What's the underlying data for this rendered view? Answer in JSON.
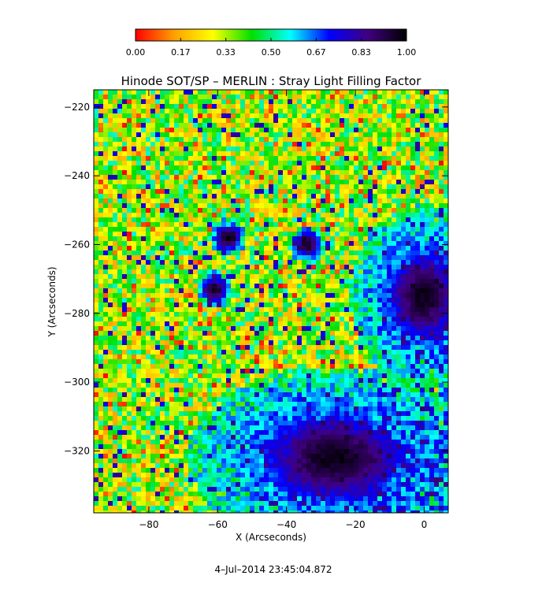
{
  "chart_data": {
    "type": "heatmap",
    "title": "Hinode SOT/SP – MERLIN : Stray Light Filling Factor",
    "xlabel": "X (Arcseconds)",
    "ylabel": "Y (Arcseconds)",
    "xlim": [
      -96,
      7
    ],
    "ylim": [
      -338,
      -215
    ],
    "x_ticks": [
      -80,
      -60,
      -40,
      -20,
      0
    ],
    "y_ticks": [
      -220,
      -240,
      -260,
      -280,
      -300,
      -320
    ],
    "colorbar": {
      "min": 0.0,
      "max": 1.0,
      "tick_labels": [
        "0.00",
        "0.17",
        "0.33",
        "0.50",
        "0.67",
        "0.83",
        "1.00"
      ],
      "colormap": "rainbow (red-yellow-green-cyan-blue-violet-black)",
      "colors": [
        "#ff0000",
        "#ffa000",
        "#ffff00",
        "#00e000",
        "#00ffff",
        "#0000ff",
        "#400080",
        "#000000"
      ]
    },
    "background_value_range": [
      0.15,
      0.55
    ],
    "features": [
      {
        "label": "sunspot",
        "center": [
          -26,
          -322
        ],
        "value": 0.9
      },
      {
        "label": "sunspot",
        "center": [
          0,
          -275
        ],
        "value": 0.92
      },
      {
        "label": "pore",
        "center": [
          -34,
          -260
        ],
        "value": 0.85
      },
      {
        "label": "pore",
        "center": [
          -57,
          -258
        ],
        "value": 0.8
      },
      {
        "label": "pore",
        "center": [
          -61,
          -273
        ],
        "value": 0.8
      }
    ]
  },
  "footer": {
    "timestamp": "4–Jul–2014 23:45:04.872"
  }
}
